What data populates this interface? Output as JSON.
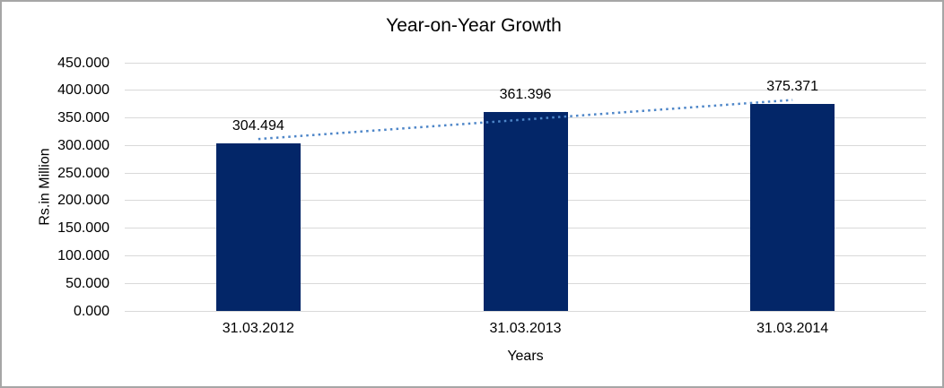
{
  "chart_data": {
    "type": "bar",
    "title": "Year-on-Year Growth",
    "categories": [
      "31.03.2012",
      "31.03.2013",
      "31.03.2014"
    ],
    "values": [
      304.494,
      361.396,
      375.371
    ],
    "data_labels": [
      "304.494",
      "361.396",
      "375.371"
    ],
    "xlabel": "Years",
    "ylabel": "Rs.in Million",
    "ylim": [
      0,
      450
    ],
    "ytick_interval": 50,
    "ytick_labels": [
      "450.000",
      "400.000",
      "350.000",
      "300.000",
      "250.000",
      "200.000",
      "150.000",
      "100.000",
      "50.000",
      "0.000"
    ],
    "grid": true,
    "legend": "none",
    "trendline": {
      "type": "linear",
      "style": "dotted"
    },
    "colors": {
      "bar": "#032668",
      "trendline": "#4e86c8",
      "gridline": "#d9d9d9",
      "axis_line": "#d9d9d9",
      "text": "#000000",
      "frame_border": "#a6a6a6",
      "background": "#ffffff"
    }
  }
}
